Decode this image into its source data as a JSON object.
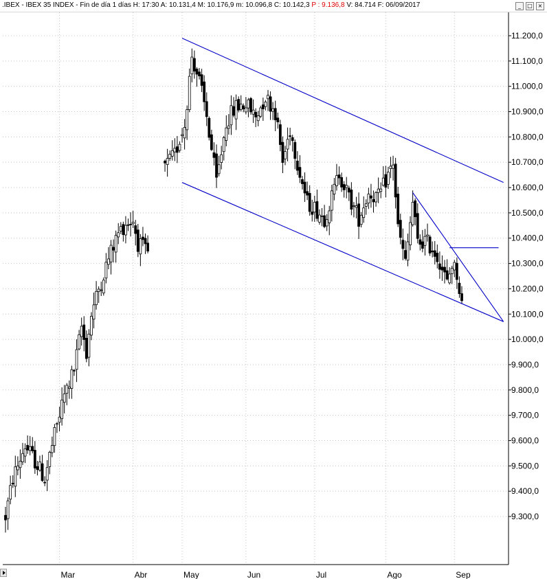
{
  "header": {
    "symbol": ".IBEX",
    "name": "IBEX 35 INDEX",
    "period": "Fin de día 1 días",
    "hora": "H: 17:30",
    "apertura": "A: 10.131,4",
    "maximo": "M: 10.176,9",
    "minimo": "m: 10.096,8",
    "cierre": "C: 10.142,3",
    "prev": "P : 9.136,8",
    "volumen": "V: 84.714",
    "fecha": "F: 06/09/2017",
    "buttons": [
      "_",
      "□",
      "×"
    ]
  },
  "colors": {
    "grid": "#c4c4c4",
    "candle": "#000000",
    "trendline": "#0000c8",
    "prev_text": "#e00000"
  },
  "chart_data": {
    "type": "candlestick",
    "y_ticks": [
      "9.300,0",
      "9.400,0",
      "9.500,0",
      "9.600,0",
      "9.700,0",
      "9.800,0",
      "9.900,0",
      "10.000,0",
      "10.100,0",
      "10.200,0",
      "10.300,0",
      "10.400,0",
      "10.500,0",
      "10.600,0",
      "10.700,0",
      "10.800,0",
      "10.900,0",
      "11.000,0",
      "11.100,0",
      "11.200,0"
    ],
    "y_tick_values": [
      9300,
      9400,
      9500,
      9600,
      9700,
      9800,
      9900,
      10000,
      10100,
      10200,
      10300,
      10400,
      10500,
      10600,
      10700,
      10800,
      10900,
      11000,
      11100,
      11200
    ],
    "ylim": [
      9225,
      11250
    ],
    "n_sessions": 200,
    "x_labels": [
      {
        "label": "Mar",
        "session": 22
      },
      {
        "label": "Abr",
        "session": 52
      },
      {
        "label": "May",
        "session": 72
      },
      {
        "label": "Jun",
        "session": 98
      },
      {
        "label": "Jul",
        "session": 126
      },
      {
        "label": "Ago",
        "session": 155
      },
      {
        "label": "Sep",
        "session": 183
      }
    ],
    "anchors": [
      [
        0,
        9300
      ],
      [
        3,
        9450
      ],
      [
        8,
        9580
      ],
      [
        12,
        9520
      ],
      [
        16,
        9450
      ],
      [
        18,
        9540
      ],
      [
        20,
        9620
      ],
      [
        24,
        9780
      ],
      [
        28,
        9880
      ],
      [
        31,
        10050
      ],
      [
        33,
        9950
      ],
      [
        35,
        10100
      ],
      [
        38,
        10200
      ],
      [
        42,
        10320
      ],
      [
        46,
        10420
      ],
      [
        49,
        10460
      ],
      [
        52,
        10470
      ],
      [
        54,
        10380
      ],
      [
        58,
        10340
      ],
      [
        62,
        10340
      ],
      [
        65,
        10680
      ],
      [
        69,
        10730
      ],
      [
        73,
        10850
      ],
      [
        76,
        11120
      ],
      [
        79,
        11020
      ],
      [
        82,
        10880
      ],
      [
        86,
        10620
      ],
      [
        90,
        10860
      ],
      [
        94,
        10920
      ],
      [
        98,
        10930
      ],
      [
        102,
        10880
      ],
      [
        106,
        10960
      ],
      [
        110,
        10900
      ],
      [
        113,
        10700
      ],
      [
        116,
        10830
      ],
      [
        120,
        10660
      ],
      [
        123,
        10540
      ],
      [
        126,
        10520
      ],
      [
        130,
        10480
      ],
      [
        133,
        10560
      ],
      [
        136,
        10660
      ],
      [
        140,
        10560
      ],
      [
        144,
        10480
      ],
      [
        148,
        10580
      ],
      [
        152,
        10560
      ],
      [
        156,
        10650
      ],
      [
        158,
        10700
      ],
      [
        160,
        10440
      ],
      [
        163,
        10300
      ],
      [
        166,
        10540
      ],
      [
        168,
        10380
      ],
      [
        171,
        10390
      ],
      [
        174,
        10360
      ],
      [
        177,
        10310
      ],
      [
        180,
        10220
      ],
      [
        182,
        10300
      ],
      [
        184,
        10260
      ],
      [
        186,
        10140
      ]
    ],
    "trendlines": [
      {
        "name": "upper-channel",
        "from": [
          72,
          11190
        ],
        "to": [
          203,
          10620
        ]
      },
      {
        "name": "lower-channel",
        "from": [
          72,
          10620
        ],
        "to": [
          203,
          10070
        ]
      },
      {
        "name": "short-resistance",
        "from": [
          166,
          10580
        ],
        "to": [
          203,
          10070
        ]
      },
      {
        "name": "horizontal-level",
        "from": [
          181,
          10362
        ],
        "to": [
          201,
          10362
        ]
      }
    ]
  }
}
